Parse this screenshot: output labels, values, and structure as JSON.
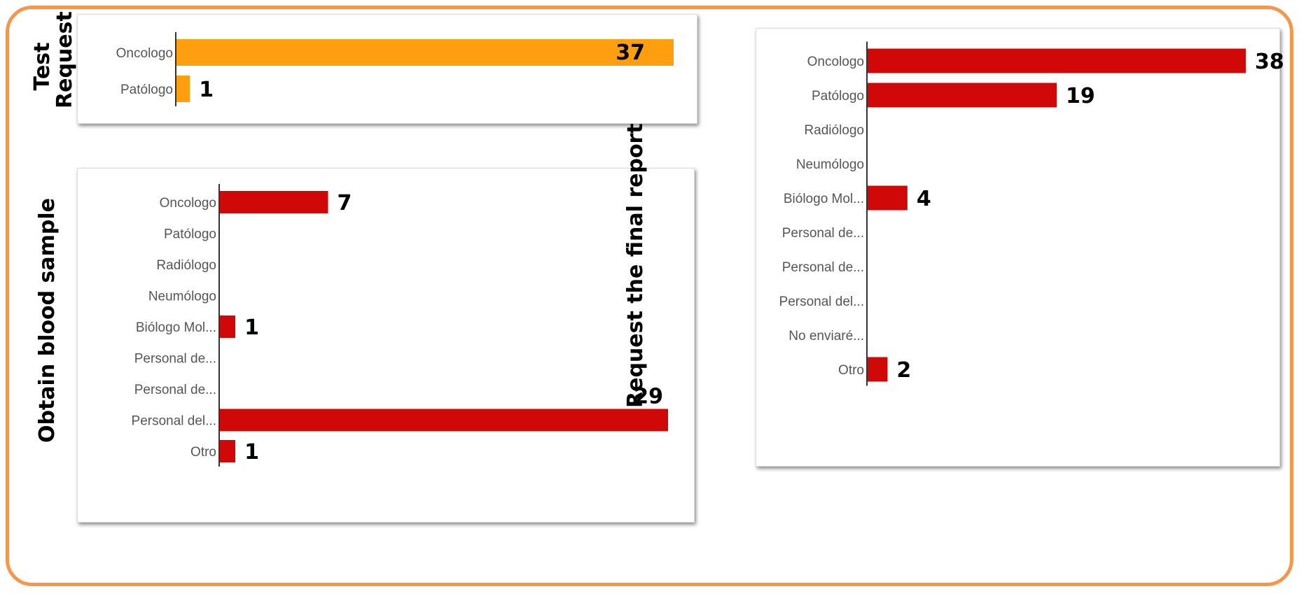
{
  "chart_data": [
    {
      "type": "bar",
      "orientation": "horizontal",
      "side_title": "Test Request",
      "categories": [
        "Oncologo",
        "Patólogo"
      ],
      "values": [
        37,
        1
      ],
      "xlim": [
        0,
        37
      ],
      "color": "#ff9e0f"
    },
    {
      "type": "bar",
      "orientation": "horizontal",
      "side_title": "Obtain blood sample",
      "categories": [
        "Oncologo",
        "Patólogo",
        "Radiólogo",
        "Neumólogo",
        "Biólogo Mol...",
        "Personal de...",
        "Personal de...",
        "Personal del...",
        "Otro"
      ],
      "values": [
        7,
        null,
        null,
        null,
        1,
        null,
        null,
        29,
        1
      ],
      "xlim": [
        0,
        29
      ],
      "color": "#d10808"
    },
    {
      "type": "bar",
      "orientation": "horizontal",
      "side_title": "Request the final report",
      "categories": [
        "Oncologo",
        "Patólogo",
        "Radiólogo",
        "Neumólogo",
        "Biólogo Mol...",
        "Personal de...",
        "Personal de...",
        "Personal del...",
        "No enviaré...",
        "Otro"
      ],
      "values": [
        38,
        19,
        null,
        null,
        4,
        null,
        null,
        null,
        null,
        2
      ],
      "xlim": [
        0,
        38
      ],
      "color": "#d10808"
    }
  ]
}
